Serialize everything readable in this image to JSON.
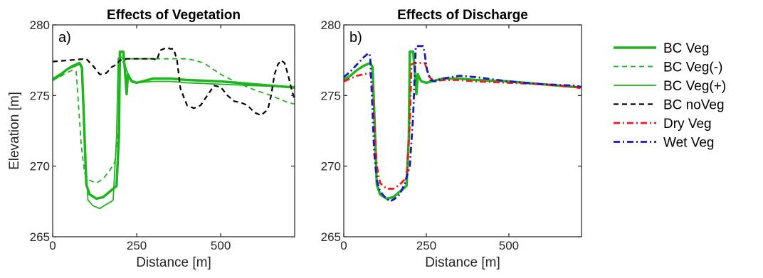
{
  "chart_data": [
    {
      "type": "line",
      "title": "Effects of Vegetation",
      "panel_label": "a)",
      "xlabel": "Distance [m]",
      "ylabel": "Elevation [m]",
      "xlim": [
        0,
        720
      ],
      "ylim": [
        265,
        280
      ],
      "xticks": [
        0,
        250,
        500
      ],
      "yticks": [
        265,
        270,
        275,
        280
      ],
      "grid": false,
      "series": [
        {
          "name": "BC Veg",
          "color": "#1fb51f",
          "dash": "solid",
          "width": 3.5,
          "x": [
            0,
            20,
            40,
            60,
            80,
            87,
            92,
            100,
            110,
            130,
            150,
            170,
            190,
            197,
            200,
            210,
            215,
            220,
            224,
            228,
            235,
            250,
            300,
            350,
            400,
            500,
            600,
            700,
            720
          ],
          "y": [
            276.1,
            276.4,
            276.8,
            277.1,
            277.3,
            277.0,
            274.0,
            268.7,
            268.0,
            267.7,
            267.8,
            268.2,
            268.6,
            272.0,
            278.1,
            278.1,
            276.8,
            275.1,
            276.5,
            276.3,
            276.0,
            275.9,
            276.2,
            276.2,
            276.1,
            276.0,
            275.8,
            275.6,
            275.6
          ]
        },
        {
          "name": "BC Veg(-)",
          "color": "#1fb51f",
          "dash": "dashed",
          "width": 1.8,
          "x": [
            0,
            20,
            40,
            60,
            70,
            75,
            85,
            95,
            110,
            130,
            150,
            170,
            185,
            195,
            200,
            205,
            215,
            225,
            250,
            300,
            350,
            400,
            420,
            450,
            500,
            550,
            600,
            650,
            700,
            720
          ],
          "y": [
            276.1,
            276.3,
            276.6,
            276.8,
            276.7,
            275.0,
            271.5,
            269.5,
            269.0,
            268.8,
            269.1,
            269.7,
            270.3,
            272.5,
            277.0,
            277.3,
            277.5,
            277.6,
            277.6,
            277.6,
            277.6,
            277.6,
            277.5,
            277.3,
            276.5,
            275.9,
            275.4,
            275.0,
            274.5,
            274.4
          ]
        },
        {
          "name": "BC Veg(+)",
          "color": "#1fb51f",
          "dash": "solid",
          "width": 1.8,
          "x": [
            0,
            20,
            40,
            60,
            80,
            88,
            95,
            105,
            120,
            140,
            160,
            175,
            180,
            190,
            195,
            200,
            210,
            220,
            228,
            235,
            250,
            300,
            350,
            400,
            500,
            600,
            700,
            720
          ],
          "y": [
            276.2,
            276.5,
            276.8,
            277.0,
            277.2,
            276.8,
            272.0,
            267.6,
            267.2,
            267.0,
            267.3,
            267.5,
            267.6,
            272.0,
            277.6,
            277.8,
            277.6,
            276.8,
            276.3,
            276.1,
            275.9,
            276.0,
            276.0,
            275.9,
            275.8,
            275.7,
            275.6,
            275.5
          ]
        },
        {
          "name": "BC noVeg",
          "color": "#000000",
          "dash": "dashed",
          "width": 2.2,
          "x": [
            0,
            50,
            100,
            120,
            140,
            150,
            160,
            175,
            190,
            200,
            220,
            250,
            280,
            300,
            310,
            320,
            340,
            350,
            360,
            370,
            380,
            400,
            420,
            440,
            460,
            480,
            500,
            520,
            540,
            560,
            580,
            600,
            620,
            640,
            650,
            660,
            670,
            680,
            690,
            700,
            710,
            720
          ],
          "y": [
            277.4,
            277.5,
            277.6,
            277.1,
            276.5,
            276.5,
            276.6,
            277.0,
            277.2,
            277.5,
            277.6,
            277.6,
            277.6,
            277.6,
            277.5,
            278.2,
            278.4,
            278.3,
            278.3,
            277.5,
            275.5,
            274.3,
            274.1,
            274.3,
            275.0,
            275.7,
            275.6,
            275.0,
            274.6,
            274.5,
            274.3,
            273.8,
            273.6,
            274.0,
            275.0,
            276.5,
            277.2,
            277.5,
            277.3,
            276.5,
            275.5,
            274.7
          ]
        }
      ]
    },
    {
      "type": "line",
      "title": "Effects of Discharge",
      "panel_label": "b)",
      "xlabel": "Distance [m]",
      "ylabel": "",
      "xlim": [
        0,
        720
      ],
      "ylim": [
        265,
        280
      ],
      "xticks": [
        0,
        250,
        500
      ],
      "yticks": [
        265,
        270,
        275,
        280
      ],
      "grid": false,
      "series": [
        {
          "name": "BC Veg",
          "color": "#1fb51f",
          "dash": "solid",
          "width": 3.5,
          "x": [
            0,
            20,
            40,
            60,
            80,
            87,
            92,
            100,
            110,
            130,
            150,
            170,
            190,
            197,
            200,
            210,
            215,
            220,
            224,
            228,
            235,
            250,
            300,
            350,
            400,
            500,
            600,
            700,
            720
          ],
          "y": [
            276.1,
            276.4,
            276.8,
            277.1,
            277.3,
            277.0,
            274.0,
            268.7,
            268.0,
            267.7,
            267.8,
            268.2,
            268.6,
            272.0,
            278.1,
            278.1,
            276.8,
            275.1,
            276.5,
            276.3,
            276.0,
            275.9,
            276.2,
            276.2,
            276.1,
            276.0,
            275.8,
            275.6,
            275.6
          ]
        },
        {
          "name": "Dry Veg",
          "color": "#ee1c1c",
          "dash": "dashdot",
          "width": 2.8,
          "x": [
            0,
            20,
            40,
            60,
            80,
            85,
            90,
            100,
            110,
            130,
            150,
            170,
            190,
            200,
            205,
            215,
            230,
            245,
            250,
            260,
            275,
            300,
            350,
            400,
            500,
            600,
            700,
            720
          ],
          "y": [
            276.0,
            276.2,
            276.4,
            276.5,
            276.6,
            276.0,
            274.0,
            270.0,
            268.8,
            268.4,
            268.4,
            268.7,
            269.2,
            273.0,
            277.2,
            277.3,
            277.3,
            277.3,
            277.0,
            276.3,
            276.0,
            276.1,
            276.1,
            276.0,
            275.9,
            275.8,
            275.6,
            275.5
          ]
        },
        {
          "name": "Wet Veg",
          "color": "#1a1ab8",
          "dash": "dashdot",
          "width": 2.8,
          "x": [
            0,
            20,
            40,
            60,
            75,
            80,
            85,
            92,
            100,
            110,
            125,
            140,
            155,
            170,
            185,
            200,
            210,
            218,
            220,
            230,
            240,
            245,
            252,
            262,
            275,
            300,
            350,
            400,
            500,
            600,
            700,
            720
          ],
          "y": [
            276.3,
            276.7,
            277.2,
            277.7,
            278.0,
            277.8,
            275.0,
            271.0,
            269.0,
            268.2,
            267.8,
            267.5,
            267.7,
            268.0,
            268.8,
            270.0,
            273.5,
            278.4,
            278.5,
            278.5,
            278.5,
            278.0,
            276.8,
            276.1,
            276.0,
            276.2,
            276.4,
            276.3,
            276.0,
            275.8,
            275.7,
            275.6
          ]
        }
      ]
    }
  ],
  "legend": {
    "placement": "right",
    "items": [
      {
        "label": "BC Veg",
        "color": "#1fb51f",
        "dash": "solid",
        "width": 3.5
      },
      {
        "label": "BC Veg(-)",
        "color": "#1fb51f",
        "dash": "dashed",
        "width": 1.8
      },
      {
        "label": "BC Veg(+)",
        "color": "#1fb51f",
        "dash": "solid",
        "width": 1.8
      },
      {
        "label": "BC noVeg",
        "color": "#000000",
        "dash": "dashed",
        "width": 2.2
      },
      {
        "label": "Dry Veg",
        "color": "#ee1c1c",
        "dash": "dashdot",
        "width": 2.8
      },
      {
        "label": "Wet Veg",
        "color": "#1a1ab8",
        "dash": "dashdot",
        "width": 2.8
      }
    ]
  }
}
